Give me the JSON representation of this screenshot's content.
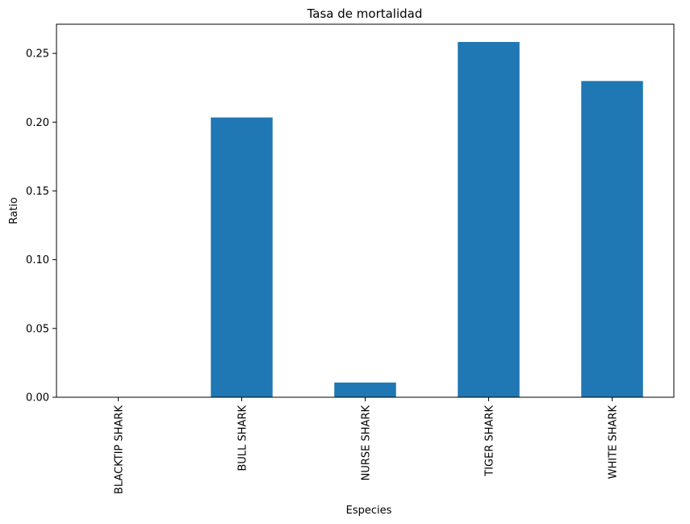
{
  "chart_data": {
    "type": "bar",
    "title": "Tasa de mortalidad",
    "xlabel": "Especies",
    "ylabel": "Ratio",
    "categories": [
      "BLACKTIP SHARK",
      "BULL SHARK",
      "NURSE SHARK",
      "TIGER SHARK",
      "WHITE SHARK"
    ],
    "values": [
      0.0,
      0.2034,
      0.0107,
      0.2583,
      0.2299
    ],
    "ylim": [
      0,
      0.2712
    ],
    "yticks": [
      0.0,
      0.05,
      0.1,
      0.15,
      0.2,
      0.25
    ],
    "ytick_labels": [
      "0.00",
      "0.05",
      "0.10",
      "0.15",
      "0.20",
      "0.25"
    ],
    "grid": false,
    "bar_color": "#1f77b4"
  }
}
